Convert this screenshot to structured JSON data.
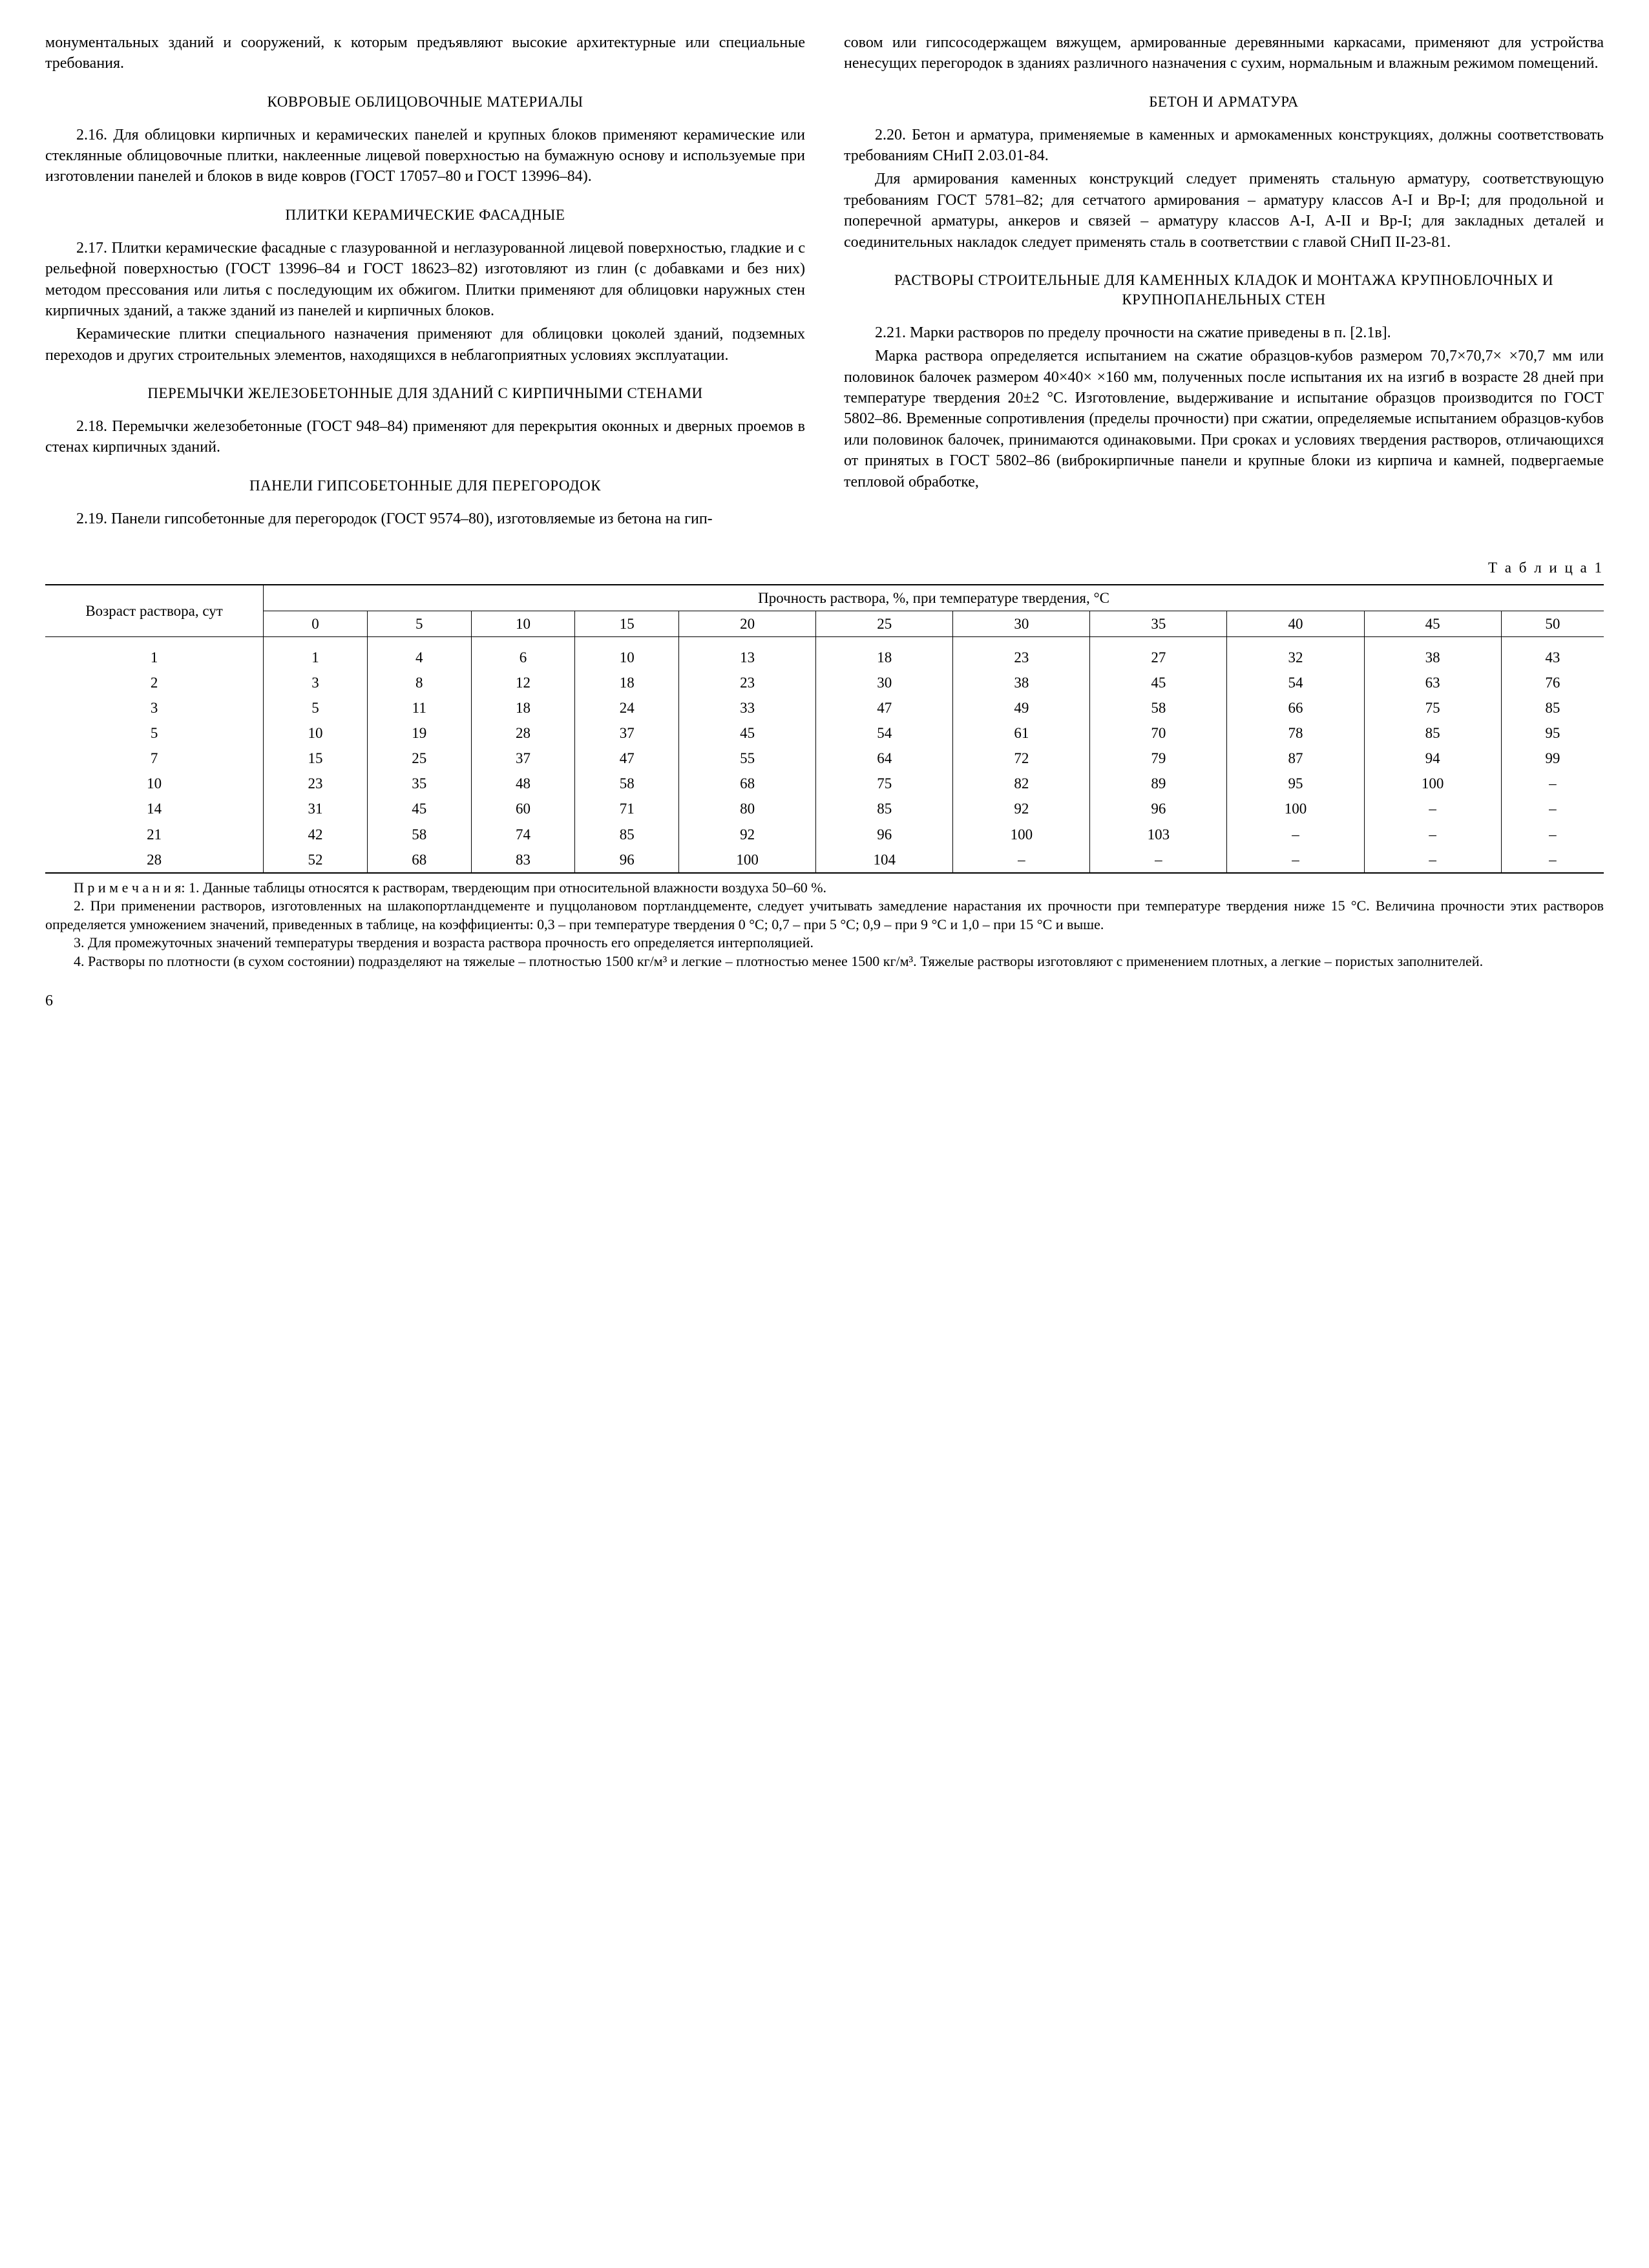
{
  "left": {
    "p1": "монументальных зданий и сооружений, к которым предъявляют высокие архитектурные или специальные требования.",
    "h1": "КОВРОВЫЕ ОБЛИЦОВОЧНЫЕ МАТЕРИАЛЫ",
    "p2": "2.16. Для облицовки кирпичных и керамических панелей и крупных блоков применяют керамические или стеклянные облицовочные плитки, наклеенные лицевой поверхностью на бумажную основу и используемые при изготовлении панелей и блоков в виде ковров (ГОСТ 17057–80 и ГОСТ 13996–84).",
    "h2": "ПЛИТКИ КЕРАМИЧЕСКИЕ ФАСАДНЫЕ",
    "p3": "2.17. Плитки керамические фасадные с глазурованной и неглазурованной лицевой поверхностью, гладкие и с рельефной поверхностью (ГОСТ 13996–84 и ГОСТ 18623–82) изготовляют из глин (с добавками и без них) методом прессования или литья с последующим их обжигом. Плитки применяют для облицовки наружных стен кирпичных зданий, а также зданий из панелей и кирпичных блоков.",
    "p4": "Керамические плитки специального назначения применяют для облицовки цоколей зданий, подземных переходов и других строительных элементов, находящихся в неблагоприятных условиях эксплуатации.",
    "h3": "ПЕРЕМЫЧКИ ЖЕЛЕЗОБЕТОННЫЕ ДЛЯ ЗДАНИЙ С КИРПИЧНЫМИ СТЕНАМИ",
    "p5": "2.18. Перемычки железобетонные (ГОСТ 948–84) применяют для перекрытия оконных и дверных проемов в стенах кирпичных зданий.",
    "h4": "ПАНЕЛИ ГИПСОБЕТОННЫЕ ДЛЯ ПЕРЕГОРОДОК",
    "p6": "2.19. Панели гипсобетонные для перегородок (ГОСТ 9574–80), изготовляемые из бетона на гип-"
  },
  "right": {
    "p1": "совом или гипсосодержащем вяжущем, армированные деревянными каркасами, применяют для устройства ненесущих перегородок в зданиях различного назначения с сухим, нормальным и влажным режимом помещений.",
    "h1": "БЕТОН И АРМАТУРА",
    "p2": "2.20. Бетон и арматура, применяемые в каменных и армокаменных конструкциях, должны соответствовать требованиям СНиП 2.03.01-84.",
    "p3": "Для армирования каменных конструкций следует применять стальную арматуру, соответствующую требованиям ГОСТ 5781–82; для сетчатого армирования – арматуру классов А-I и Вр-I; для продольной и поперечной арматуры, анкеров и связей – арматуру классов А-I, А-II и Вр-I; для закладных деталей и соединительных накладок следует применять сталь в соответствии с главой СНиП II-23-81.",
    "h2": "РАСТВОРЫ СТРОИТЕЛЬНЫЕ ДЛЯ КАМЕННЫХ КЛАДОК И МОНТАЖА КРУПНОБЛОЧНЫХ И КРУПНОПАНЕЛЬНЫХ СТЕН",
    "p4": "2.21. Марки растворов по пределу прочности на сжатие приведены в п. [2.1в].",
    "p5": "Марка раствора определяется испытанием на сжатие образцов-кубов размером 70,7×70,7× ×70,7 мм или половинок балочек размером 40×40× ×160 мм, полученных после испытания их на изгиб в возрасте 28 дней при температуре твердения 20±2 °С. Изготовление, выдерживание и испытание образцов производится по ГОСТ 5802–86. Временные сопротивления (пределы прочности) при сжатии, определяемые испытанием образцов-кубов или половинок балочек, принимаются одинаковыми. При сроках и условиях твердения растворов, отличающихся от принятых в ГОСТ 5802–86 (вибро­кирпичные панели и крупные блоки из кирпича и камней, подвергаемые тепловой обработке,"
  },
  "table": {
    "caption": "Т а б л и ц а  1",
    "header_left": "Возраст раствора, сут",
    "header_right": "Прочность раствора, %, при температуре твердения, °С",
    "temps": [
      "0",
      "5",
      "10",
      "15",
      "20",
      "25",
      "30",
      "35",
      "40",
      "45",
      "50"
    ],
    "rows": [
      {
        "age": "1",
        "v": [
          "1",
          "4",
          "6",
          "10",
          "13",
          "18",
          "23",
          "27",
          "32",
          "38",
          "43"
        ]
      },
      {
        "age": "2",
        "v": [
          "3",
          "8",
          "12",
          "18",
          "23",
          "30",
          "38",
          "45",
          "54",
          "63",
          "76"
        ]
      },
      {
        "age": "3",
        "v": [
          "5",
          "11",
          "18",
          "24",
          "33",
          "47",
          "49",
          "58",
          "66",
          "75",
          "85"
        ]
      },
      {
        "age": "5",
        "v": [
          "10",
          "19",
          "28",
          "37",
          "45",
          "54",
          "61",
          "70",
          "78",
          "85",
          "95"
        ]
      },
      {
        "age": "7",
        "v": [
          "15",
          "25",
          "37",
          "47",
          "55",
          "64",
          "72",
          "79",
          "87",
          "94",
          "99"
        ]
      },
      {
        "age": "10",
        "v": [
          "23",
          "35",
          "48",
          "58",
          "68",
          "75",
          "82",
          "89",
          "95",
          "100",
          "–"
        ]
      },
      {
        "age": "14",
        "v": [
          "31",
          "45",
          "60",
          "71",
          "80",
          "85",
          "92",
          "96",
          "100",
          "–",
          "–"
        ]
      },
      {
        "age": "21",
        "v": [
          "42",
          "58",
          "74",
          "85",
          "92",
          "96",
          "100",
          "103",
          "–",
          "–",
          "–"
        ]
      },
      {
        "age": "28",
        "v": [
          "52",
          "68",
          "83",
          "96",
          "100",
          "104",
          "–",
          "–",
          "–",
          "–",
          "–"
        ]
      }
    ]
  },
  "notes": {
    "n1": "П р и м е ч а н и я: 1. Данные таблицы относятся к растворам, твердеющим при относительной влажности воздуха 50–60 %.",
    "n2": "2. При применении растворов, изготовленных на шлакопортландцементе и пуццолановом портландцементе, следует учитывать замедление нарастания их прочности при температуре твердения ниже 15 °С. Величина прочности этих растворов определяется умножением значений, приведенных в таблице, на коэффициенты: 0,3 – при температуре твердения 0 °С; 0,7 – при 5 °С; 0,9 – при 9 °С и 1,0 – при 15 °С и выше.",
    "n3": "3. Для промежуточных значений температуры твердения и возраста раствора прочность его определяется интерполяцией.",
    "n4": "4. Растворы по плотности (в сухом состоянии) подразделяют на тяжелые – плотностью 1500 кг/м³ и легкие – плотностью менее 1500 кг/м³. Тяжелые растворы изготовляют с применением плотных, а легкие – пористых заполнителей."
  },
  "page_number": "6"
}
